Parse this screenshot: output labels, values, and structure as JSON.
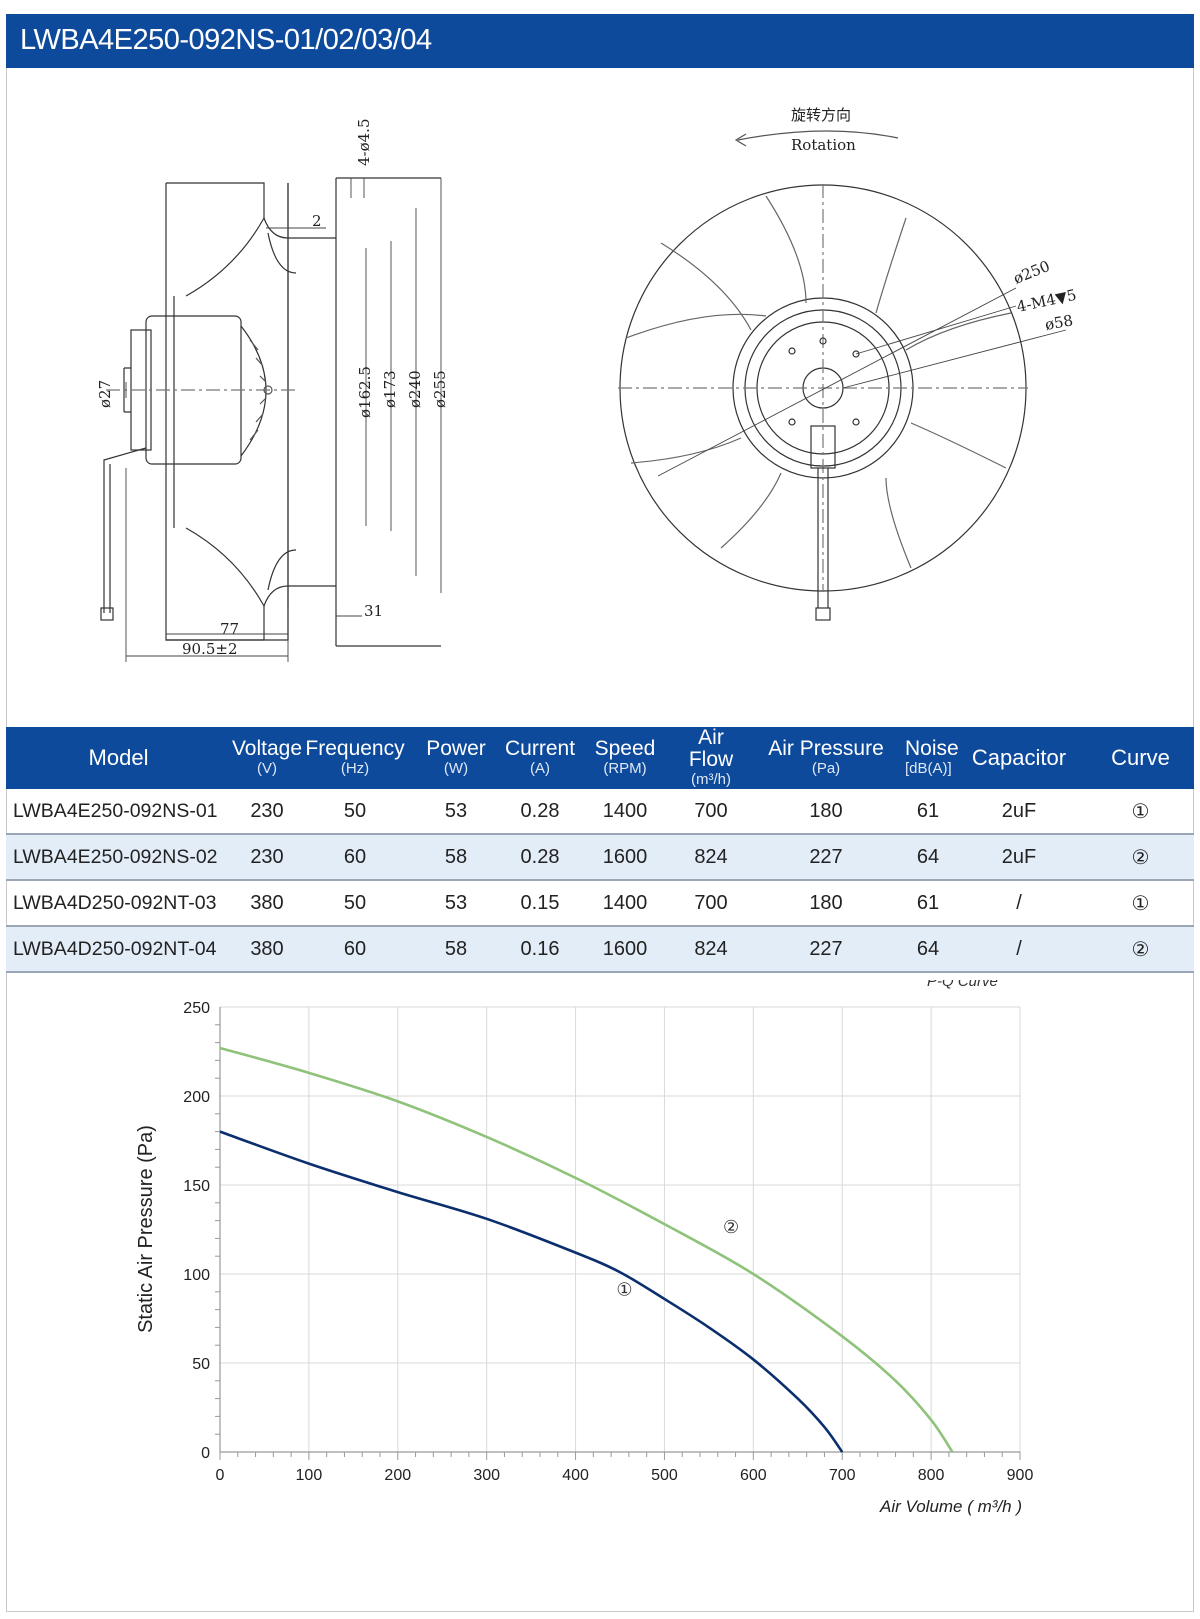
{
  "header": {
    "title": "LWBA4E250-092NS-01/02/03/04"
  },
  "drawing": {
    "side_view": {
      "dim_holes": "4-ø4.5",
      "dim_2": "2",
      "dim_162_5": "ø162.5",
      "dim_173": "ø173",
      "dim_240": "ø240",
      "dim_255": "ø255",
      "dim_27": "ø27",
      "dim_31": "31",
      "dim_77": "77",
      "dim_90_5": "90.5±2"
    },
    "front_view": {
      "rotation_cn": "旋转方向",
      "rotation_en": "Rotation",
      "dim_250": "ø250",
      "dim_m4": "4-M4▼5",
      "dim_58": "ø58"
    }
  },
  "table": {
    "headers": [
      {
        "label": "Model",
        "unit": ""
      },
      {
        "label": "Voltage",
        "unit": "(V)"
      },
      {
        "label": "Frequency",
        "unit": "(Hz)"
      },
      {
        "label": "Power",
        "unit": "(W)"
      },
      {
        "label": "Current",
        "unit": "(A)"
      },
      {
        "label": "Speed",
        "unit": "(RPM)"
      },
      {
        "label": "Air Flow",
        "unit": "(m³/h)"
      },
      {
        "label": "Air Pressure",
        "unit": "(Pa)"
      },
      {
        "label": "Noise",
        "unit": "[dB(A)]"
      },
      {
        "label": "Capacitor",
        "unit": ""
      },
      {
        "label": "Curve",
        "unit": ""
      }
    ],
    "rows": [
      [
        "LWBA4E250-092NS-01",
        "230",
        "50",
        "53",
        "0.28",
        "1400",
        "700",
        "180",
        "61",
        "2uF",
        "①"
      ],
      [
        "LWBA4E250-092NS-02",
        "230",
        "60",
        "58",
        "0.28",
        "1600",
        "824",
        "227",
        "64",
        "2uF",
        "②"
      ],
      [
        "LWBA4D250-092NT-03",
        "380",
        "50",
        "53",
        "0.15",
        "1400",
        "700",
        "180",
        "61",
        "/",
        "①"
      ],
      [
        "LWBA4D250-092NT-04",
        "380",
        "60",
        "58",
        "0.16",
        "1600",
        "824",
        "227",
        "64",
        "/",
        "②"
      ]
    ]
  },
  "chart_data": {
    "type": "line",
    "title": "P-Q Curve",
    "xlabel": "Air Volume ( m³/h )",
    "ylabel": "Static Air Pressure  (Pa)",
    "xlim": [
      0,
      900
    ],
    "ylim": [
      0,
      250
    ],
    "xticks": [
      "0",
      "100",
      "200",
      "300",
      "400",
      "500",
      "600",
      "700",
      "800",
      "900"
    ],
    "yticks": [
      "0",
      "50",
      "100",
      "150",
      "200",
      "250"
    ],
    "grid": true,
    "series": [
      {
        "name": "①",
        "color": "#0b2e6e",
        "points": [
          [
            0,
            180
          ],
          [
            100,
            162
          ],
          [
            200,
            146
          ],
          [
            300,
            131
          ],
          [
            400,
            112
          ],
          [
            450,
            101
          ],
          [
            500,
            86
          ],
          [
            550,
            70
          ],
          [
            600,
            52
          ],
          [
            650,
            30
          ],
          [
            680,
            14
          ],
          [
            700,
            0
          ]
        ]
      },
      {
        "name": "②",
        "color": "#8fc27a",
        "points": [
          [
            0,
            227
          ],
          [
            100,
            213
          ],
          [
            200,
            197
          ],
          [
            300,
            177
          ],
          [
            400,
            154
          ],
          [
            500,
            128
          ],
          [
            600,
            100
          ],
          [
            700,
            65
          ],
          [
            760,
            40
          ],
          [
            800,
            18
          ],
          [
            824,
            0
          ]
        ]
      }
    ],
    "annotations": [
      {
        "text": "①",
        "x": 455,
        "y": 88
      },
      {
        "text": "②",
        "x": 575,
        "y": 123
      }
    ]
  }
}
